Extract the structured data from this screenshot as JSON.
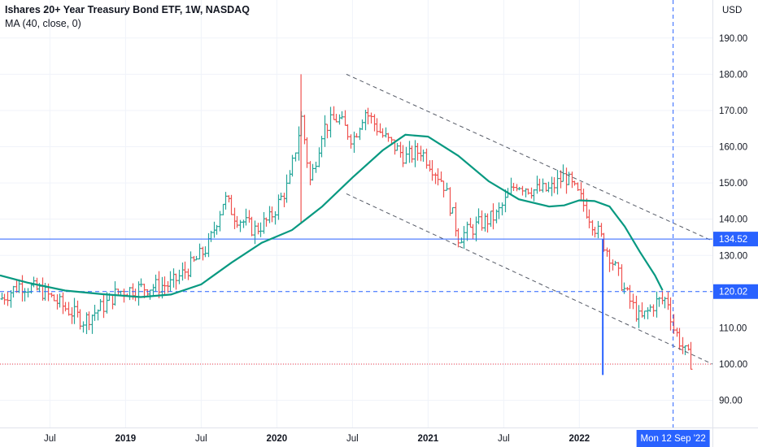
{
  "header": {
    "title": "Ishares 20+ Year Treasury Bond ETF, 1W, NASDAQ",
    "indicator": "MA (40, close, 0)"
  },
  "chart_data": {
    "type": "candlestick",
    "currency": "USD",
    "ylim": [
      82.5,
      200.5
    ],
    "y_ticks": [
      90,
      100,
      110,
      120,
      130,
      140,
      150,
      160,
      170,
      180,
      190
    ],
    "x_tick_labels": [
      {
        "label": "Jul",
        "t": 2018.5
      },
      {
        "label": "2019",
        "t": 2019.0
      },
      {
        "label": "Jul",
        "t": 2019.5
      },
      {
        "label": "2020",
        "t": 2020.0
      },
      {
        "label": "Jul",
        "t": 2020.5
      },
      {
        "label": "2021",
        "t": 2021.0
      },
      {
        "label": "Jul",
        "t": 2021.5
      },
      {
        "label": "2022",
        "t": 2022.0
      }
    ],
    "xlim": [
      2018.17,
      2022.88
    ],
    "grid": true,
    "colors": {
      "up": "#26a69a",
      "down": "#ef5350",
      "ma": "#089981",
      "hline": "#2962ff",
      "label_bg": "#2962ff",
      "red_dotted": "#f23645"
    },
    "price_path": [
      [
        2018.17,
        118
      ],
      [
        2018.3,
        122
      ],
      [
        2018.45,
        120
      ],
      [
        2018.55,
        117
      ],
      [
        2018.72,
        112
      ],
      [
        2018.85,
        116
      ],
      [
        2018.95,
        120
      ],
      [
        2019.1,
        121
      ],
      [
        2019.3,
        122
      ],
      [
        2019.45,
        128
      ],
      [
        2019.55,
        133
      ],
      [
        2019.65,
        146
      ],
      [
        2019.72,
        141
      ],
      [
        2019.85,
        137
      ],
      [
        2019.95,
        140
      ],
      [
        2020.08,
        150
      ],
      [
        2020.16,
        168
      ],
      [
        2020.22,
        150
      ],
      [
        2020.3,
        165
      ],
      [
        2020.4,
        168
      ],
      [
        2020.5,
        162
      ],
      [
        2020.58,
        170
      ],
      [
        2020.7,
        163
      ],
      [
        2020.85,
        157
      ],
      [
        2020.95,
        159
      ],
      [
        2021.1,
        150
      ],
      [
        2021.2,
        135
      ],
      [
        2021.35,
        139
      ],
      [
        2021.45,
        141
      ],
      [
        2021.58,
        150
      ],
      [
        2021.7,
        148
      ],
      [
        2021.8,
        148
      ],
      [
        2021.9,
        152
      ],
      [
        2022.0,
        146
      ],
      [
        2022.1,
        138
      ],
      [
        2022.2,
        130
      ],
      [
        2022.3,
        120
      ],
      [
        2022.4,
        112
      ],
      [
        2022.5,
        117
      ],
      [
        2022.58,
        118
      ],
      [
        2022.62,
        110
      ],
      [
        2022.7,
        103
      ],
      [
        2022.75,
        100
      ]
    ],
    "ma_path": [
      [
        2018.17,
        124.5
      ],
      [
        2018.35,
        122.5
      ],
      [
        2018.6,
        120.3
      ],
      [
        2018.85,
        119.3
      ],
      [
        2019.1,
        118.5
      ],
      [
        2019.3,
        119.2
      ],
      [
        2019.5,
        122.0
      ],
      [
        2019.7,
        128.0
      ],
      [
        2019.9,
        133.5
      ],
      [
        2020.1,
        137.0
      ],
      [
        2020.3,
        143.5
      ],
      [
        2020.5,
        151.5
      ],
      [
        2020.7,
        159.0
      ],
      [
        2020.85,
        163.3
      ],
      [
        2021.0,
        162.8
      ],
      [
        2021.2,
        157.5
      ],
      [
        2021.4,
        150.5
      ],
      [
        2021.6,
        145.5
      ],
      [
        2021.8,
        143.5
      ],
      [
        2021.9,
        143.8
      ],
      [
        2022.0,
        145.2
      ],
      [
        2022.1,
        145.0
      ],
      [
        2022.2,
        143.5
      ],
      [
        2022.3,
        138.0
      ],
      [
        2022.4,
        131.0
      ],
      [
        2022.5,
        124.5
      ],
      [
        2022.55,
        120.4
      ]
    ],
    "h_levels": [
      {
        "value": 134.52,
        "label": "134.52",
        "style": "solid"
      },
      {
        "value": 120.02,
        "label": "120.02",
        "style": "dashed"
      },
      {
        "value": 100.0,
        "label": "",
        "style": "red-dotted"
      }
    ],
    "channel_lines": [
      {
        "from": [
          2020.46,
          180.0
        ],
        "to": [
          2022.88,
          134.0
        ]
      },
      {
        "from": [
          2020.46,
          147.0
        ],
        "to": [
          2022.88,
          100.0
        ]
      }
    ],
    "vertical_segment": {
      "t": 2022.155,
      "from": 134.52,
      "to": 97.0
    },
    "crosshair_x": 2022.62,
    "crosshair_label": "Mon 12 Sep '22"
  }
}
